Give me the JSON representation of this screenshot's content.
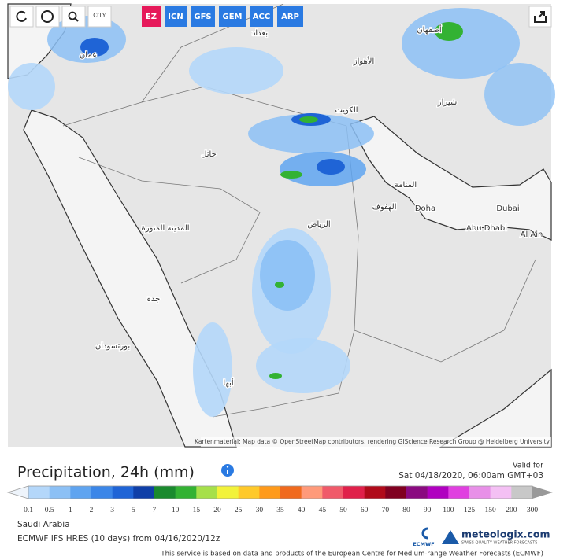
{
  "toolbar": {
    "city": "CITY",
    "models": [
      "EZ",
      "ICN",
      "GFS",
      "GEM",
      "ACC",
      "ARP"
    ]
  },
  "map": {
    "labels": [
      "أصفهان",
      "الأهواز",
      "شيراز",
      "الكويت",
      "حائل",
      "المنامة",
      "الهفوف",
      "Doha",
      "Dubai",
      "Abu Dhabi",
      "Al Ain",
      "الرياض",
      "المدينة المنورة",
      "جدة",
      "أبها",
      "بورتسودان",
      "عمان",
      "بغداد"
    ],
    "attribution": "Kartenmaterial: Map data © OpenStreetMap contributors, rendering GIScience Research Group @ Heidelberg University"
  },
  "legend": {
    "title": "Precipitation, 24h (mm)",
    "valid_label": "Valid for",
    "valid_time": "Sat 04/18/2020, 06:00am GMT+03",
    "scale_labels": [
      0.1,
      0.5,
      1,
      2,
      3,
      5,
      7,
      10,
      15,
      20,
      25,
      30,
      35,
      40,
      45,
      50,
      60,
      70,
      80,
      90,
      100,
      125,
      150,
      200,
      300
    ],
    "scale_colors": [
      "#b4d7fa",
      "#8cc0f5",
      "#5fa4f0",
      "#3b86e8",
      "#1f64d6",
      "#0f3fa8",
      "#1a8a2e",
      "#33b233",
      "#a6e04a",
      "#f2f23a",
      "#ffc92a",
      "#ff9a1a",
      "#f06a1e",
      "#ff9a7a",
      "#f05a6a",
      "#e0204a",
      "#b00a1a",
      "#800020",
      "#8a0a80",
      "#b000c0",
      "#e040e0",
      "#e890e8",
      "#f4c0f4",
      "#c8c8c8"
    ]
  },
  "info": {
    "region": "Saudi Arabia",
    "model": "ECMWF IFS HRES (10 days) from 04/16/2020/12z",
    "ecmwf": "ECMWF",
    "brand": "meteologix.com",
    "tagline": "SWISS QUALITY WEATHER FORECASTS",
    "footer": "This service is based on data and products of the European Centre for Medium-range Weather Forecasts (ECMWF)"
  }
}
